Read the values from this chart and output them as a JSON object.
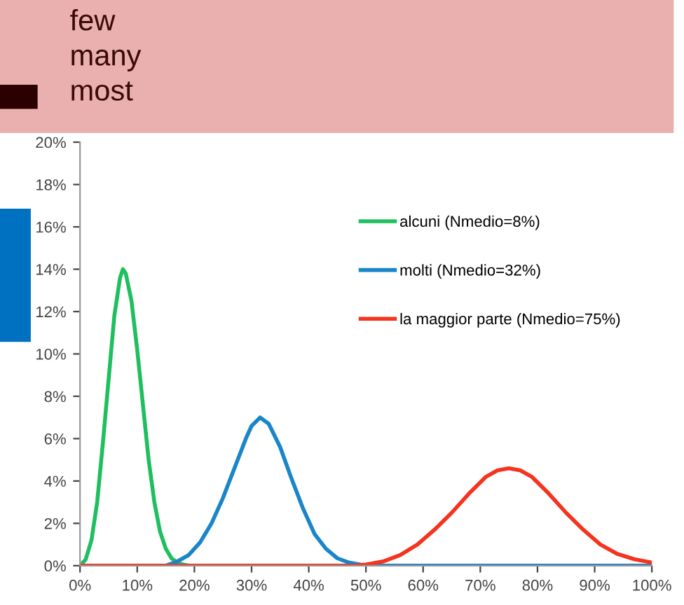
{
  "chart_data": {
    "type": "line",
    "annotations": [
      "few",
      "many",
      "most"
    ],
    "series": [
      {
        "name": "alcuni (Nmedio=8%)",
        "color": "#1fbf5f",
        "x": [
          0,
          1,
          2,
          3,
          4,
          5,
          6,
          7,
          7.5,
          8,
          9,
          10,
          11,
          12,
          13,
          14,
          15,
          16,
          17,
          18,
          19
        ],
        "values": [
          0,
          0.3,
          1.2,
          3.0,
          5.8,
          8.8,
          11.8,
          13.6,
          14.0,
          13.8,
          12.5,
          10.2,
          7.6,
          5.0,
          3.0,
          1.6,
          0.8,
          0.35,
          0.15,
          0.05,
          0
        ]
      },
      {
        "name": "molti (Nmedio=32%)",
        "color": "#1a86c8",
        "x": [
          15,
          17,
          19,
          21,
          23,
          25,
          27,
          29,
          30,
          31.5,
          33,
          35,
          37,
          39,
          41,
          43,
          45,
          47,
          49,
          51,
          100
        ],
        "values": [
          0,
          0.2,
          0.5,
          1.1,
          2.0,
          3.2,
          4.6,
          6.0,
          6.6,
          7.0,
          6.7,
          5.6,
          4.1,
          2.7,
          1.5,
          0.8,
          0.35,
          0.15,
          0.05,
          0,
          0
        ]
      },
      {
        "name": "la maggior parte (Nmedio=75%)",
        "color": "#f5341f",
        "x": [
          0,
          48,
          50,
          53,
          56,
          59,
          62,
          65,
          68,
          71,
          73,
          75,
          77,
          79,
          82,
          85,
          88,
          91,
          94,
          97,
          100
        ],
        "values": [
          0,
          0,
          0.05,
          0.2,
          0.5,
          1.0,
          1.7,
          2.5,
          3.4,
          4.2,
          4.5,
          4.6,
          4.5,
          4.2,
          3.4,
          2.5,
          1.7,
          1.0,
          0.55,
          0.3,
          0.15
        ]
      }
    ],
    "xlim": [
      0,
      100
    ],
    "xticks": [
      {
        "value": 0,
        "label": "0%"
      },
      {
        "value": 10,
        "label": "10%"
      },
      {
        "value": 20,
        "label": "20%"
      },
      {
        "value": 30,
        "label": "30%"
      },
      {
        "value": 40,
        "label": "40%"
      },
      {
        "value": 50,
        "label": "50%"
      },
      {
        "value": 60,
        "label": "60%"
      },
      {
        "value": 70,
        "label": "70%"
      },
      {
        "value": 80,
        "label": "80%"
      },
      {
        "value": 90,
        "label": "90%"
      },
      {
        "value": 100,
        "label": "100%"
      }
    ],
    "ylim": [
      0,
      20
    ],
    "yticks": [
      {
        "value": 0,
        "label": "0%"
      },
      {
        "value": 2,
        "label": "2%"
      },
      {
        "value": 4,
        "label": "4%"
      },
      {
        "value": 6,
        "label": "6%"
      },
      {
        "value": 8,
        "label": "8%"
      },
      {
        "value": 10,
        "label": "10%"
      },
      {
        "value": 12,
        "label": "12%"
      },
      {
        "value": 14,
        "label": "14%"
      },
      {
        "value": 16,
        "label": "16%"
      },
      {
        "value": 18,
        "label": "18%"
      },
      {
        "value": 20,
        "label": "20%"
      }
    ],
    "grid": false,
    "legend": "top right",
    "marker": "none",
    "line_style": "solid"
  }
}
